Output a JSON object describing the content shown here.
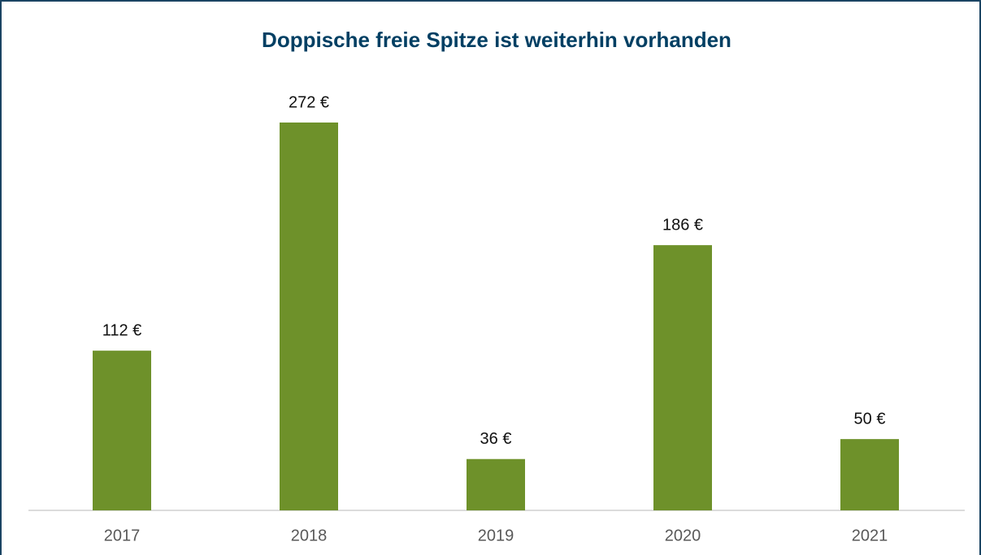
{
  "chart_data": {
    "type": "bar",
    "title": "Doppische freie Spitze ist weiterhin vorhanden",
    "categories": [
      "2017",
      "2018",
      "2019",
      "2020",
      "2021"
    ],
    "values": [
      112,
      272,
      36,
      186,
      50
    ],
    "value_labels": [
      "112 €",
      "272 €",
      "36 €",
      "186 €",
      "50 €"
    ],
    "color": "#6e912a"
  }
}
